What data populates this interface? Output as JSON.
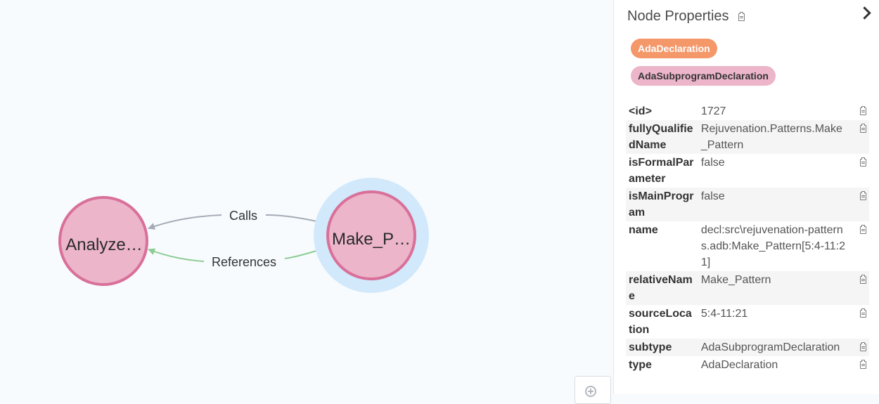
{
  "graph": {
    "nodes": [
      {
        "id": "analyze",
        "label": "Analyze…",
        "color": "#ecb5c9",
        "stroke": "#d9709a"
      },
      {
        "id": "make",
        "label": "Make_P…",
        "color": "#ecb5c9",
        "stroke": "#d9709a",
        "selected": true,
        "halo": "#d2e9fb"
      }
    ],
    "relationships": [
      {
        "label": "Calls",
        "color": "#a5abb6"
      },
      {
        "label": "References",
        "color": "#8dcc93"
      }
    ]
  },
  "panel": {
    "title": "Node Properties",
    "labels": [
      "AdaDeclaration",
      "AdaSubprogramDeclaration"
    ],
    "properties": [
      {
        "key": "<id>",
        "value": "1727"
      },
      {
        "key": "fullyQualifiedName",
        "value": "Rejuvenation.Patterns.Make_Pattern"
      },
      {
        "key": "isFormalParameter",
        "value": "false"
      },
      {
        "key": "isMainProgram",
        "value": "false"
      },
      {
        "key": "name",
        "value": "decl:src\\rejuvenation-patterns.adb:Make_Pattern[5:4-11:21]"
      },
      {
        "key": "relativeName",
        "value": "Make_Pattern"
      },
      {
        "key": "sourceLocation",
        "value": "5:4-11:21"
      },
      {
        "key": "subtype",
        "value": "AdaSubprogramDeclaration"
      },
      {
        "key": "type",
        "value": "AdaDeclaration"
      }
    ]
  },
  "icons": {
    "copy": "clipboard-icon",
    "collapse": "chevron-right-icon",
    "zoom": "zoom-in-icon"
  }
}
